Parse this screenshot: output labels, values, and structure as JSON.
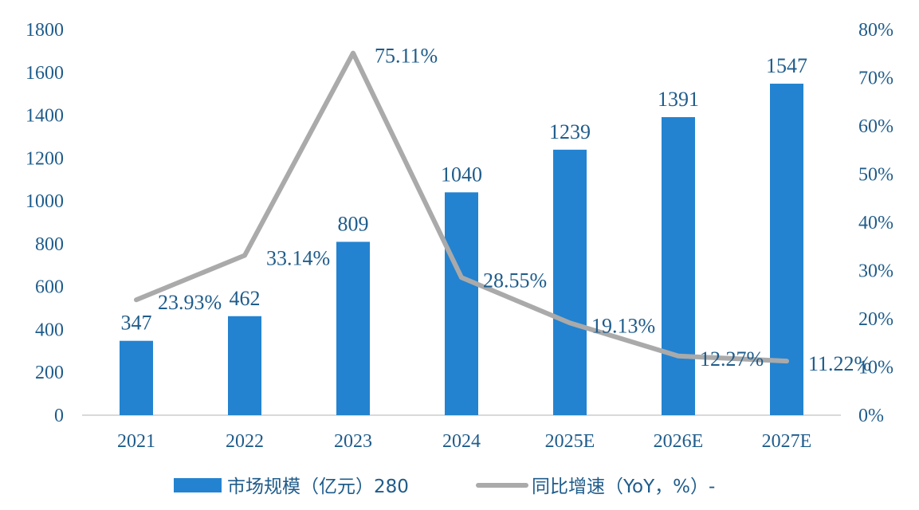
{
  "chart_data": {
    "type": "bar",
    "categories": [
      "2021",
      "2022",
      "2023",
      "2024",
      "2025E",
      "2026E",
      "2027E"
    ],
    "series": [
      {
        "name": "市场规模（亿元）280",
        "type": "bar",
        "axis": "left",
        "values": [
          347,
          462,
          809,
          1040,
          1239,
          1391,
          1547
        ],
        "labels": [
          "347",
          "462",
          "809",
          "1040",
          "1239",
          "1391",
          "1547"
        ],
        "color": "#2383D0"
      },
      {
        "name": "同比增速（YoY，%）-",
        "type": "line",
        "axis": "right",
        "values": [
          23.93,
          33.14,
          75.11,
          28.55,
          19.13,
          12.27,
          11.22
        ],
        "labels": [
          "23.93%",
          "33.14%",
          "75.11%",
          "28.55%",
          "19.13%",
          "12.27%",
          "11.22%"
        ],
        "color": "#AAAAAA"
      }
    ],
    "y_left": {
      "ylim": [
        0,
        1800
      ],
      "ticks": [
        "0",
        "200",
        "400",
        "600",
        "800",
        "1000",
        "1200",
        "1400",
        "1600",
        "1800"
      ]
    },
    "y_right": {
      "ylim": [
        0,
        80
      ],
      "ticks": [
        "0%",
        "10%",
        "20%",
        "30%",
        "40%",
        "50%",
        "60%",
        "70%",
        "80%"
      ]
    },
    "title": "",
    "xlabel": "",
    "ylabel": "",
    "grid": false,
    "legend_position": "bottom",
    "colors": {
      "text": "#1F5C8B",
      "axis": "#D9D9D9"
    }
  }
}
